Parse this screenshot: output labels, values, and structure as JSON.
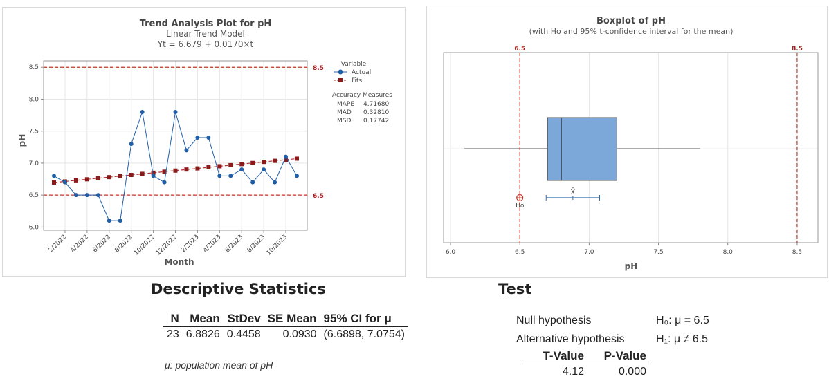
{
  "trend_panel": {
    "title": "Trend Analysis Plot for pH",
    "subtitle": "Linear Trend Model",
    "equation": "Yt = 6.679 + 0.0170×t",
    "legend_title": "Variable",
    "accuracy_title": "Accuracy Measures",
    "accuracy": [
      {
        "label": "MAPE",
        "value": "4.71680"
      },
      {
        "label": "MAD",
        "value": "0.32810"
      },
      {
        "label": "MSD",
        "value": "0.17742"
      }
    ]
  },
  "box_panel": {
    "title": "Boxplot of pH",
    "subtitle": "(with Ho and 95% t-confidence interval for the mean)",
    "xbar_label": "X̄",
    "ho_label": "Ho"
  },
  "chart_data": [
    {
      "type": "line",
      "title": "Trend Analysis Plot for pH",
      "xlabel": "Month",
      "ylabel": "pH",
      "ylim": [
        5.95,
        8.6
      ],
      "yticks": [
        "6.0",
        "6.5",
        "7.0",
        "7.5",
        "8.0",
        "8.5"
      ],
      "xtick_labels": [
        "2/2022",
        "4/2022",
        "6/2022",
        "8/2022",
        "10/2022",
        "12/2022",
        "2/2023",
        "4/2023",
        "6/2023",
        "8/2023",
        "10/2023"
      ],
      "xtick_indices": [
        2,
        4,
        6,
        8,
        10,
        12,
        14,
        16,
        18,
        20,
        22
      ],
      "reference_lines": [
        {
          "value": 8.5,
          "label": "8.5"
        },
        {
          "value": 6.5,
          "label": "6.5"
        }
      ],
      "series": [
        {
          "name": "Actual",
          "color": "#1f5fa8",
          "marker": "circle",
          "values": [
            6.8,
            6.7,
            6.5,
            6.5,
            6.5,
            6.1,
            6.1,
            7.3,
            7.8,
            6.8,
            6.7,
            7.8,
            7.2,
            7.4,
            7.4,
            6.8,
            6.8,
            6.9,
            6.7,
            6.9,
            6.7,
            7.1,
            6.8
          ]
        },
        {
          "name": "Fits",
          "color": "#8b1a1a",
          "marker": "square",
          "values": [
            6.696,
            6.713,
            6.73,
            6.747,
            6.764,
            6.781,
            6.798,
            6.815,
            6.832,
            6.849,
            6.866,
            6.883,
            6.9,
            6.917,
            6.934,
            6.951,
            6.968,
            6.985,
            7.002,
            7.019,
            7.036,
            7.053,
            7.07
          ]
        }
      ],
      "grid": true,
      "legend_position": "right"
    },
    {
      "type": "box",
      "title": "Boxplot of pH",
      "xlabel": "pH",
      "xlim": [
        5.95,
        8.65
      ],
      "xticks": [
        "6.0",
        "6.5",
        "7.0",
        "7.5",
        "8.0",
        "8.5"
      ],
      "box": {
        "min": 6.1,
        "q1": 6.7,
        "median": 6.8,
        "q3": 7.2,
        "max": 7.8
      },
      "mean": 6.8826,
      "ci": [
        6.6898,
        7.0754
      ],
      "ho": 6.5,
      "reference_lines": [
        {
          "value": 6.5,
          "label": "6.5"
        },
        {
          "value": 8.5,
          "label": "8.5"
        }
      ],
      "color": "#7ba7d9"
    }
  ],
  "descriptive": {
    "heading": "Descriptive Statistics",
    "headers": [
      "N",
      "Mean",
      "StDev",
      "SE Mean",
      "95% CI for μ"
    ],
    "row": [
      "23",
      "6.8826",
      "0.4458",
      "0.0930",
      "(6.6898, 7.0754)"
    ],
    "note": "μ: population mean of pH"
  },
  "test": {
    "heading": "Test",
    "null_label": "Null hypothesis",
    "null_value": "H₀: μ = 6.5",
    "alt_label": "Alternative hypothesis",
    "alt_value": "H₁: μ ≠ 6.5",
    "headers": [
      "T-Value",
      "P-Value"
    ],
    "row": [
      "4.12",
      "0.000"
    ]
  }
}
